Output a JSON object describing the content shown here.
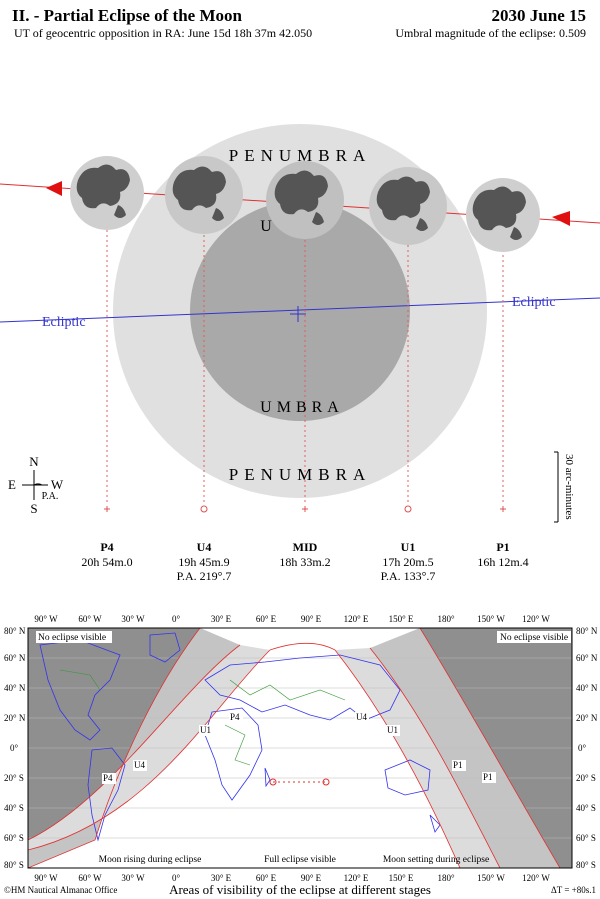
{
  "header": {
    "title": "II. - Partial Eclipse of the Moon",
    "date": "2030 June 15",
    "opposition": "UT of geocentric opposition in RA: June 15d 18h 37m 42.050",
    "magnitude": "Umbral magnitude of the eclipse: 0.509"
  },
  "diagram": {
    "penumbra_top": "PENUMBRA",
    "penumbra_bottom": "PENUMBRA",
    "umbra": "UMBRA",
    "umbra_letter": "U",
    "ecliptic_left": "Ecliptic",
    "ecliptic_right": "Ecliptic",
    "scale": "30 arc-minutes",
    "compass": {
      "n": "N",
      "s": "S",
      "e": "E",
      "w": "W",
      "pa": "P.A."
    },
    "contacts": [
      {
        "name": "P4",
        "time": "20h 54m.0",
        "pa": ""
      },
      {
        "name": "U4",
        "time": "19h 45m.9",
        "pa": "P.A. 219°.7"
      },
      {
        "name": "MID",
        "time": "18h 33m.2",
        "pa": ""
      },
      {
        "name": "U1",
        "time": "17h 20m.5",
        "pa": "P.A. 133°.7"
      },
      {
        "name": "P1",
        "time": "16h 12m.4",
        "pa": ""
      }
    ]
  },
  "map": {
    "lon_labels": [
      "90° W",
      "60° W",
      "30° W",
      "0°",
      "30° E",
      "60° E",
      "90° E",
      "120° E",
      "150° E",
      "180°",
      "150° W",
      "120° W"
    ],
    "lat_labels": [
      "80° N",
      "60° N",
      "40° N",
      "20° N",
      "0°",
      "20° S",
      "40° S",
      "60° S",
      "80° S"
    ],
    "region_labels": {
      "no_eclipse_left": "No eclipse visible",
      "no_eclipse_right": "No eclipse visible",
      "rising": "Moon rising during eclipse",
      "full": "Full eclipse visible",
      "setting": "Moon setting during eclipse"
    },
    "curve_labels": [
      "P4",
      "U4",
      "U1",
      "P4",
      "U4",
      "U1",
      "P1"
    ],
    "caption": "Areas of visibility of the eclipse at different stages",
    "copyright": "©HM Nautical Almanac Office",
    "delta_t": "ΔT = +80s.1"
  },
  "colors": {
    "penumbra": "#e0e0e0",
    "umbra": "#a9a9a9",
    "moon": "#cfcfcf",
    "maria": "#555555",
    "ecliptic": "#3333cc",
    "moon_path": "#e03030",
    "night": "#8f8f8f",
    "coast": "#3333ee",
    "borders": "#339933"
  }
}
